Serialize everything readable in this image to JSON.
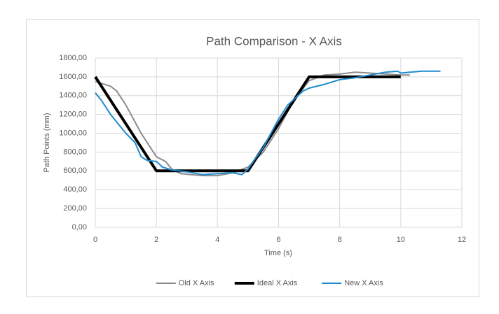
{
  "chart_data": {
    "type": "line",
    "title": "Path Comparison - X Axis",
    "x_label": "Time (s)",
    "y_label": "Path Points (mm)",
    "xlim": [
      0,
      12
    ],
    "xticks": [
      0,
      2,
      4,
      6,
      8,
      10,
      12
    ],
    "ylim": [
      0,
      1800
    ],
    "yticks": [
      {
        "value": 0,
        "label": "0,00"
      },
      {
        "value": 200,
        "label": "200,00"
      },
      {
        "value": 400,
        "label": "400,00"
      },
      {
        "value": 600,
        "label": "600,00"
      },
      {
        "value": 800,
        "label": "800,00"
      },
      {
        "value": 1000,
        "label": "1000,00"
      },
      {
        "value": 1200,
        "label": "1200,00"
      },
      {
        "value": 1400,
        "label": "1400,00"
      },
      {
        "value": 1600,
        "label": "1600,00"
      },
      {
        "value": 1800,
        "label": "1800,00"
      }
    ],
    "grid": true,
    "legend": "bottom",
    "series": [
      {
        "name": "Old X Axis",
        "color": "#8c8c8c",
        "width": 2,
        "x": [
          0,
          0.5,
          0.7,
          1,
          1.5,
          2,
          2.3,
          2.5,
          2.8,
          3.5,
          4,
          4.5,
          5,
          5.5,
          6,
          6.5,
          7,
          7.5,
          8,
          8.5,
          9,
          10,
          10.3
        ],
        "values": [
          1550,
          1500,
          1450,
          1300,
          1000,
          750,
          700,
          620,
          570,
          550,
          550,
          580,
          640,
          800,
          1050,
          1350,
          1560,
          1620,
          1630,
          1650,
          1640,
          1620,
          1620
        ]
      },
      {
        "name": "Ideal X Axis",
        "color": "#000000",
        "width": 4,
        "x": [
          0,
          2,
          5,
          7,
          10
        ],
        "values": [
          1600,
          600,
          600,
          1600,
          1600
        ]
      },
      {
        "name": "New X Axis",
        "color": "#1f8ad0",
        "width": 2,
        "x": [
          0,
          0.2,
          0.5,
          1,
          1.3,
          1.5,
          1.7,
          2,
          2.2,
          2.5,
          3,
          3.5,
          4,
          4.5,
          4.8,
          5,
          5.5,
          6,
          6.3,
          6.8,
          7,
          7.5,
          8,
          8.5,
          9,
          9.5,
          9.9,
          10,
          10.3,
          10.7,
          11.3
        ],
        "values": [
          1430,
          1350,
          1200,
          1000,
          900,
          750,
          710,
          700,
          640,
          610,
          590,
          560,
          570,
          580,
          560,
          620,
          850,
          1150,
          1300,
          1450,
          1480,
          1520,
          1570,
          1590,
          1620,
          1650,
          1660,
          1640,
          1650,
          1660,
          1660
        ]
      }
    ]
  }
}
